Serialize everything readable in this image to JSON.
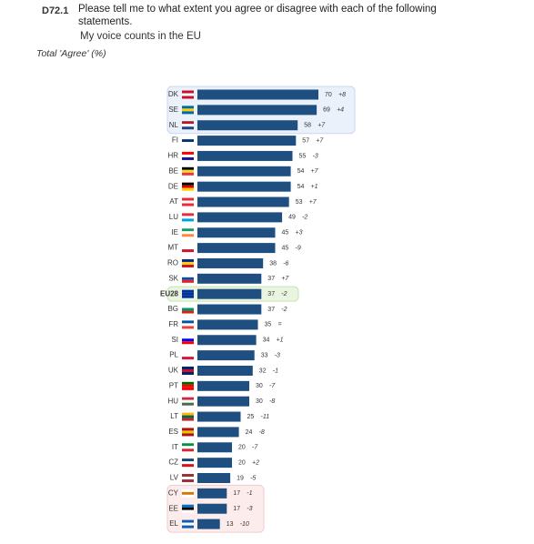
{
  "header": {
    "code": "D72.1",
    "question": "Please tell me to what extent you agree or disagree with each of the following statements.",
    "statement": "My voice counts in the EU",
    "subtitle": "Total 'Agree' (%)"
  },
  "chart_data": {
    "type": "bar",
    "orientation": "horizontal",
    "color": "#1f4e80",
    "categories": [
      "DK",
      "SE",
      "NL",
      "FI",
      "HR",
      "BE",
      "DE",
      "AT",
      "LU",
      "IE",
      "MT",
      "RO",
      "SK",
      "EU28",
      "BG",
      "FR",
      "SI",
      "PL",
      "UK",
      "PT",
      "HU",
      "LT",
      "ES",
      "IT",
      "CZ",
      "LV",
      "CY",
      "EE",
      "EL"
    ],
    "values": [
      70,
      69,
      58,
      57,
      55,
      54,
      54,
      53,
      49,
      45,
      45,
      38,
      37,
      37,
      37,
      35,
      34,
      33,
      32,
      30,
      30,
      25,
      24,
      20,
      20,
      19,
      17,
      17,
      13
    ],
    "changes": [
      "+8",
      "+4",
      "+7",
      "+7",
      "-3",
      "+7",
      "+1",
      "+7",
      "-2",
      "+3",
      "-9",
      "-6",
      "+7",
      "-2",
      "-2",
      "=",
      "+1",
      "-3",
      "-1",
      "-7",
      "-8",
      "-11",
      "-8",
      "-7",
      "+2",
      "-5",
      "-1",
      "-3",
      "-10"
    ]
  }
}
